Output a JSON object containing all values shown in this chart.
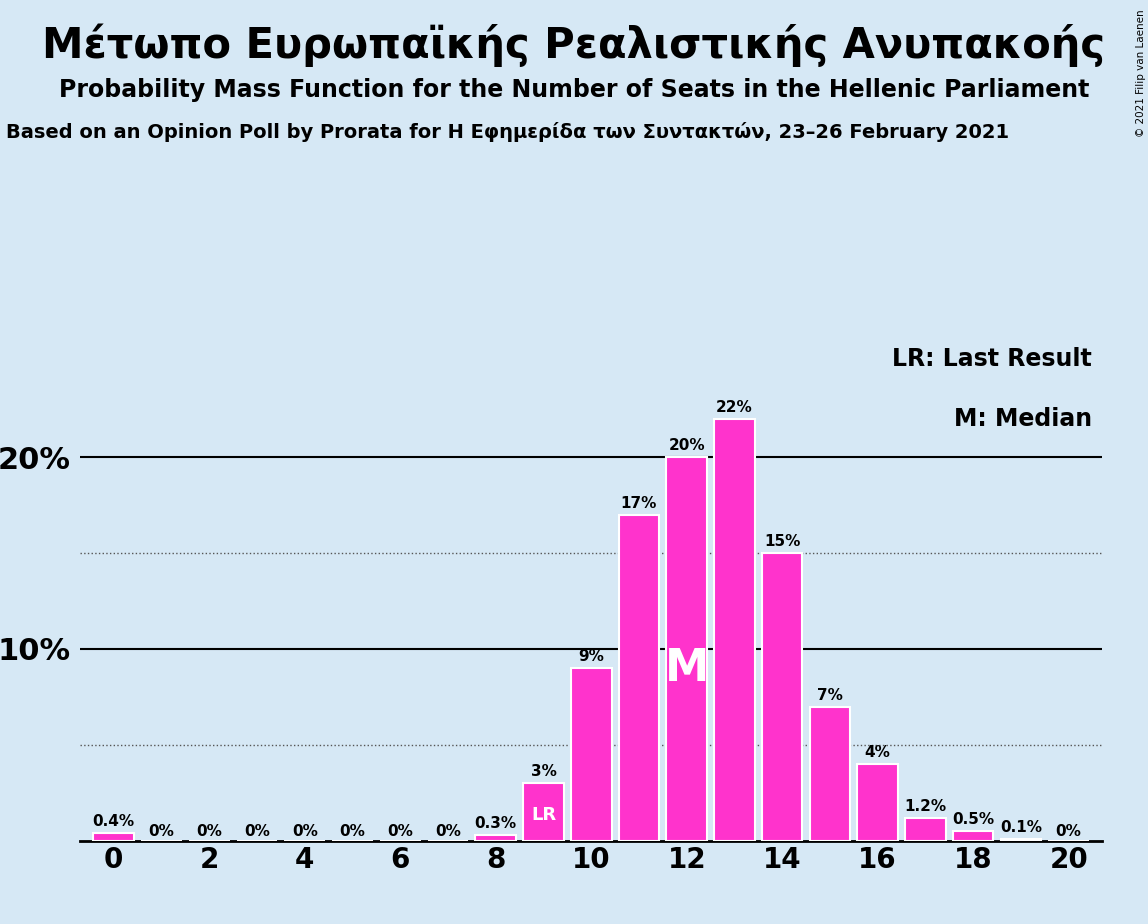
{
  "title1": "Μέτωπο Ευρωπαϊκής Ρεαλιστικής Ανυπακοής",
  "title2": "Probability Mass Function for the Number of Seats in the Hellenic Parliament",
  "title3": "Based on an Opinion Poll by Prorata for Η Εφημερίδα των Συντακτών, 23–26 February 2021",
  "copyright": "© 2021 Filip van Laenen",
  "background_color": "#d6e8f5",
  "bar_color": "#ff33cc",
  "bar_edge_color": "#ffffff",
  "seats": [
    0,
    1,
    2,
    3,
    4,
    5,
    6,
    7,
    8,
    9,
    10,
    11,
    12,
    13,
    14,
    15,
    16,
    17,
    18,
    19,
    20
  ],
  "probabilities": [
    0.4,
    0,
    0,
    0,
    0,
    0,
    0,
    0,
    0.3,
    3,
    9,
    17,
    20,
    22,
    15,
    7,
    4,
    1.2,
    0.5,
    0.1,
    0
  ],
  "labels": [
    "0.4%",
    "0%",
    "0%",
    "0%",
    "0%",
    "0%",
    "0%",
    "0%",
    "0.3%",
    "3%",
    "9%",
    "17%",
    "20%",
    "22%",
    "15%",
    "7%",
    "4%",
    "1.2%",
    "0.5%",
    "0.1%",
    "0%"
  ],
  "last_result_seat": 9,
  "median_seat": 12,
  "solid_yticks": [
    10,
    20
  ],
  "dotted_yticks": [
    5,
    15
  ],
  "legend_text1": "LR: Last Result",
  "legend_text2": "M: Median",
  "lr_label": "LR",
  "median_label": "M",
  "title1_fontsize": 30,
  "title2_fontsize": 17,
  "title3_fontsize": 14,
  "bar_label_fontsize": 11,
  "axis_tick_fontsize": 20,
  "legend_fontsize": 17,
  "ytick_fontsize": 22
}
